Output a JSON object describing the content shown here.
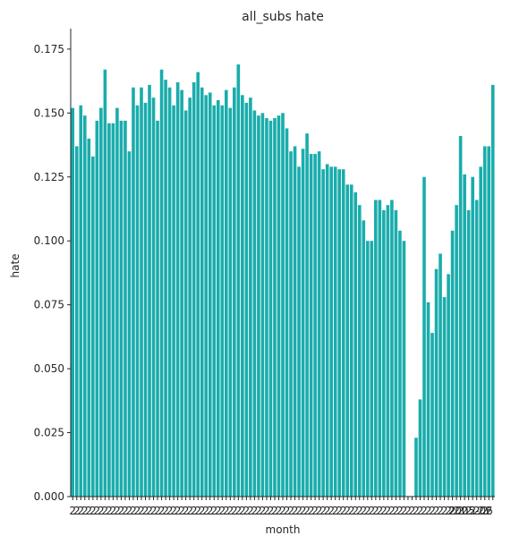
{
  "chart_data": {
    "type": "bar",
    "title": "all_subs hate",
    "xlabel": "month",
    "ylabel": "hate",
    "ylim": [
      0,
      0.183
    ],
    "yticks": [
      "0.000",
      "0.025",
      "0.050",
      "0.075",
      "0.100",
      "0.125",
      "0.150",
      "0.175"
    ],
    "grid": false,
    "bar_color": "#1aacac",
    "values": [
      0.152,
      0.137,
      0.153,
      0.149,
      0.14,
      0.133,
      0.147,
      0.152,
      0.167,
      0.146,
      0.146,
      0.152,
      0.147,
      0.147,
      0.135,
      0.16,
      0.153,
      0.16,
      0.154,
      0.161,
      0.156,
      0.147,
      0.167,
      0.163,
      0.16,
      0.153,
      0.162,
      0.159,
      0.151,
      0.156,
      0.162,
      0.166,
      0.16,
      0.157,
      0.158,
      0.153,
      0.155,
      0.153,
      0.159,
      0.152,
      0.16,
      0.169,
      0.157,
      0.154,
      0.156,
      0.151,
      0.149,
      0.15,
      0.148,
      0.147,
      0.148,
      0.149,
      0.15,
      0.144,
      0.135,
      0.137,
      0.129,
      0.136,
      0.142,
      0.134,
      0.134,
      0.135,
      0.128,
      0.13,
      0.129,
      0.129,
      0.128,
      0.128,
      0.122,
      0.122,
      0.119,
      0.114,
      0.108,
      0.1,
      0.1,
      0.116,
      0.116,
      0.112,
      0.114,
      0.116,
      0.112,
      0.104,
      0.1,
      0,
      0,
      0.023,
      0.038,
      0.125,
      0.076,
      0.064,
      0.089,
      0.095,
      0.078,
      0.087,
      0.104,
      0.114,
      0.141,
      0.126,
      0.112,
      0.125,
      0.116,
      0.129,
      0.137,
      0.137,
      0.161
    ],
    "xtick_labels": [
      "2",
      "2",
      "2",
      "2",
      "2",
      "2",
      "2",
      "2",
      "2",
      "2",
      "2",
      "2",
      "2",
      "2",
      "2",
      "2",
      "2",
      "2",
      "2",
      "2",
      "2",
      "2",
      "2",
      "2",
      "2",
      "2",
      "2",
      "2",
      "2",
      "2",
      "2",
      "2",
      "2",
      "2",
      "2",
      "2",
      "2",
      "2",
      "2",
      "2",
      "2",
      "2",
      "2",
      "2",
      "2",
      "2",
      "2",
      "2",
      "2",
      "2",
      "2",
      "2",
      "2",
      "2",
      "2",
      "2",
      "2",
      "2",
      "2",
      "2",
      "2",
      "2",
      "2",
      "2",
      "2",
      "2",
      "2",
      "2",
      "2",
      "2",
      "2",
      "2",
      "2",
      "2",
      "2",
      "2",
      "2",
      "2",
      "2",
      "2",
      "2",
      "2",
      "2",
      "2",
      "2",
      "2",
      "2",
      "2",
      "2",
      "2",
      "2",
      "2",
      "2",
      "2",
      "2",
      "2",
      "2",
      "2",
      "2",
      "2",
      "2",
      "2",
      "2",
      "2",
      "2005-06"
    ]
  }
}
